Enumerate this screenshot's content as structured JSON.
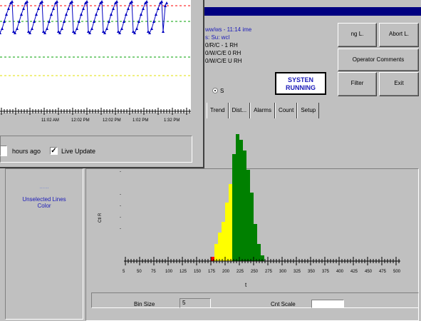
{
  "app": {
    "info_lines": [
      "ww/ws - 11:14 ime",
      "s: Su: wcl",
      "0/R/C - 1 RH",
      "0/W/C/E 0 RH",
      "0/W/C/E U RH"
    ],
    "status": "SYSTEN RUNNING",
    "radio_label": "S",
    "buttons": {
      "b1": "ng L.",
      "b2": "Abort L.",
      "b3": "Operator Comments",
      "b4": "Filter",
      "b5": "Exit"
    },
    "tabs": [
      "Trend",
      "Dist...",
      "Alarms",
      "Count",
      "Setup"
    ]
  },
  "left_panel": {
    "line1": "......",
    "line2": "Unselected Lines",
    "line3": "Color"
  },
  "histogram": {
    "x_axis_title": "t",
    "bin_size_label": "Bin Size",
    "bin_size_value": "5",
    "count_scale_label": "Cnt Scale",
    "count_scale_value": "",
    "x_tick_labels": [
      "5",
      "50",
      "75",
      "100",
      "125",
      "150",
      "175",
      "200",
      "225",
      "250",
      "275",
      "300",
      "325",
      "350",
      "375",
      "400",
      "425",
      "450",
      "475",
      "500"
    ],
    "colors": {
      "red": "#ff0000",
      "yellow": "#ffff00",
      "green": "#008000"
    }
  },
  "trend": {
    "time_labels": [
      "11:02 AM",
      "12:02 PM",
      "12:02 PM",
      "1:02 PM",
      "1:32 PM"
    ],
    "line_color": "#0000c0",
    "limit_colors": {
      "upper": "#ff0000",
      "target": "#00a000",
      "lower": "#00a000",
      "warn": "#e0e000"
    }
  },
  "trend_footer": {
    "hours_label": "hours ago",
    "hours_value": "",
    "live_update_label": "Live Update",
    "live_update_checked": true
  }
}
